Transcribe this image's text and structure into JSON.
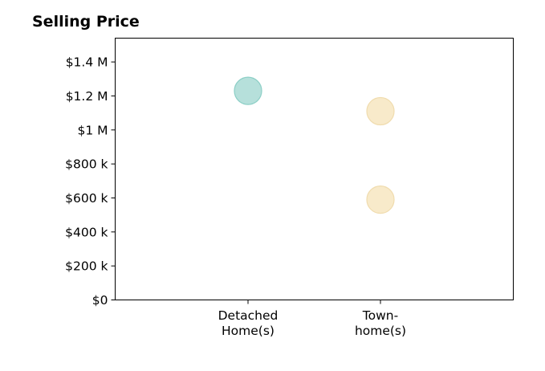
{
  "chart_data": {
    "type": "scatter",
    "title": "Selling Price",
    "xlabel": "",
    "ylabel": "",
    "categories": [
      [
        "Detached",
        "Home(s)"
      ],
      [
        "Town-",
        "home(s)"
      ]
    ],
    "ylim": [
      0,
      1540000
    ],
    "yticks": [
      {
        "value": 0,
        "label": "$0"
      },
      {
        "value": 200000,
        "label": "$200 k"
      },
      {
        "value": 400000,
        "label": "$400 k"
      },
      {
        "value": 600000,
        "label": "$600 k"
      },
      {
        "value": 800000,
        "label": "$800 k"
      },
      {
        "value": 1000000,
        "label": "$1 M"
      },
      {
        "value": 1200000,
        "label": "$1.2 M"
      },
      {
        "value": 1400000,
        "label": "$1.4 M"
      }
    ],
    "points": [
      {
        "category": 0,
        "value": 1230000,
        "color": "#a9dbd5"
      },
      {
        "category": 1,
        "value": 1110000,
        "color": "#f7e6c1"
      },
      {
        "category": 1,
        "value": 590000,
        "color": "#f7e6c1"
      }
    ],
    "grid": false,
    "legend": "none"
  }
}
